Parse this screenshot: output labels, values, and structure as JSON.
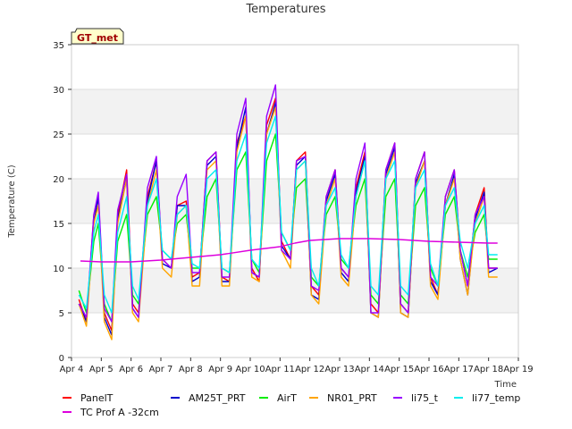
{
  "chart_data": {
    "type": "line",
    "title": "Temperatures",
    "xlabel": "Time",
    "ylabel": "Temperature (C)",
    "site_badge": "GT_met",
    "ylim": [
      0,
      35
    ],
    "yticks": [
      0,
      5,
      10,
      15,
      20,
      25,
      30,
      35
    ],
    "xlim": [
      0,
      15
    ],
    "xticks": [
      {
        "x": 0,
        "label": "Apr 4"
      },
      {
        "x": 1,
        "label": "Apr 5"
      },
      {
        "x": 2,
        "label": "Apr 6"
      },
      {
        "x": 3,
        "label": "Apr 7"
      },
      {
        "x": 4,
        "label": "Apr 8"
      },
      {
        "x": 5,
        "label": "Apr 9"
      },
      {
        "x": 6,
        "label": "Apr 10"
      },
      {
        "x": 7,
        "label": "Apr 11"
      },
      {
        "x": 8,
        "label": "Apr 12"
      },
      {
        "x": 9,
        "label": "Apr 13"
      },
      {
        "x": 10,
        "label": "Apr 14"
      },
      {
        "x": 11,
        "label": "Apr 15"
      },
      {
        "x": 12,
        "label": "Apr 16"
      },
      {
        "x": 13,
        "label": "Apr 17"
      },
      {
        "x": 14,
        "label": "Apr 18"
      },
      {
        "x": 15,
        "label": "Apr 19"
      }
    ],
    "grid": true,
    "bands": "alternating grey horizontal bands",
    "legend_position": "bottom",
    "series": [
      {
        "name": "PanelT",
        "color": "#ff0000",
        "x": [
          0.25,
          0.5,
          0.75,
          0.9,
          1.1,
          1.35,
          1.55,
          1.85,
          2.05,
          2.25,
          2.55,
          2.85,
          3.05,
          3.35,
          3.55,
          3.85,
          4.05,
          4.3,
          4.55,
          4.85,
          5.05,
          5.3,
          5.55,
          5.85,
          6.05,
          6.3,
          6.55,
          6.85,
          7.05,
          7.35,
          7.55,
          7.85,
          8.05,
          8.3,
          8.55,
          8.85,
          9.05,
          9.3,
          9.55,
          9.85,
          10.05,
          10.3,
          10.55,
          10.85,
          11.05,
          11.3,
          11.55,
          11.85,
          12.05,
          12.3,
          12.55,
          12.85,
          13.05,
          13.3,
          13.55,
          13.85,
          14.0,
          14.3
        ],
        "y": [
          6.5,
          4,
          16,
          18,
          5,
          3,
          16,
          21,
          6,
          5,
          18,
          22,
          11,
          10,
          17,
          17.5,
          9,
          9.5,
          22,
          23,
          9,
          8.5,
          24,
          27,
          10,
          8.5,
          26,
          29,
          13,
          11,
          22,
          23,
          8,
          7,
          18,
          21,
          10,
          9,
          19,
          23,
          6,
          5,
          21,
          24,
          6,
          5,
          20,
          23,
          9,
          7,
          18,
          21,
          12,
          8,
          16,
          19,
          10,
          10
        ]
      },
      {
        "name": "AM25T_PRT",
        "color": "#0000cc",
        "x": [
          0.25,
          0.5,
          0.75,
          0.9,
          1.1,
          1.35,
          1.55,
          1.85,
          2.05,
          2.25,
          2.55,
          2.85,
          3.05,
          3.35,
          3.55,
          3.85,
          4.05,
          4.3,
          4.55,
          4.85,
          5.05,
          5.3,
          5.55,
          5.85,
          6.05,
          6.3,
          6.55,
          6.85,
          7.05,
          7.35,
          7.55,
          7.85,
          8.05,
          8.3,
          8.55,
          8.85,
          9.05,
          9.3,
          9.55,
          9.85,
          10.05,
          10.3,
          10.55,
          10.85,
          11.05,
          11.3,
          11.55,
          11.85,
          12.05,
          12.3,
          12.55,
          12.85,
          13.05,
          13.3,
          13.55,
          13.85,
          14.0,
          14.3
        ],
        "y": [
          6,
          4,
          15,
          18,
          4.5,
          2.5,
          15.5,
          20,
          5.5,
          4.5,
          17.5,
          22,
          10.5,
          10,
          17,
          17,
          8.5,
          9,
          21.5,
          22.5,
          8.5,
          8.5,
          23.5,
          28,
          9.5,
          9,
          25,
          28.5,
          12.5,
          11,
          21.5,
          22.5,
          7,
          6.5,
          17.5,
          20.5,
          9.5,
          8.5,
          18.5,
          22.5,
          5,
          4.5,
          20.5,
          23.5,
          5,
          4.5,
          19.5,
          22,
          8.5,
          7,
          17,
          20.5,
          11,
          7,
          15.5,
          18.5,
          9.5,
          10
        ]
      },
      {
        "name": "AirT",
        "color": "#00ee00",
        "x": [
          0.25,
          0.5,
          0.75,
          0.9,
          1.1,
          1.35,
          1.55,
          1.85,
          2.05,
          2.25,
          2.55,
          2.85,
          3.05,
          3.35,
          3.55,
          3.85,
          4.05,
          4.3,
          4.55,
          4.85,
          5.05,
          5.3,
          5.55,
          5.85,
          6.05,
          6.3,
          6.55,
          6.85,
          7.05,
          7.35,
          7.55,
          7.85,
          8.05,
          8.3,
          8.55,
          8.85,
          9.05,
          9.3,
          9.55,
          9.85,
          10.05,
          10.3,
          10.55,
          10.85,
          11.05,
          11.3,
          11.55,
          11.85,
          12.05,
          12.3,
          12.55,
          12.85,
          13.05,
          13.3,
          13.55,
          13.85,
          14.0,
          14.3
        ],
        "y": [
          7.5,
          5,
          13,
          15,
          6,
          4,
          13,
          16,
          7,
          6,
          16,
          18,
          12,
          11,
          15,
          16,
          10,
          10,
          18,
          20,
          10,
          9.5,
          21,
          23,
          11,
          9.5,
          22,
          25,
          14,
          12,
          19,
          20,
          9,
          8,
          16,
          18,
          11,
          10,
          17,
          20,
          7,
          6,
          18,
          20,
          7,
          6,
          17,
          19,
          10,
          8,
          16,
          18,
          12,
          9,
          14,
          16,
          11,
          11
        ]
      },
      {
        "name": "NR01_PRT",
        "color": "#ffa500",
        "x": [
          0.25,
          0.5,
          0.75,
          0.9,
          1.1,
          1.35,
          1.55,
          1.85,
          2.05,
          2.25,
          2.55,
          2.85,
          3.05,
          3.35,
          3.55,
          3.85,
          4.05,
          4.3,
          4.55,
          4.85,
          5.05,
          5.3,
          5.55,
          5.85,
          6.05,
          6.3,
          6.55,
          6.85,
          7.05,
          7.35,
          7.55,
          7.85,
          8.05,
          8.3,
          8.55,
          8.85,
          9.05,
          9.3,
          9.55,
          9.85,
          10.05,
          10.3,
          10.55,
          10.85,
          11.05,
          11.3,
          11.55,
          11.85,
          12.05,
          12.3,
          12.55,
          12.85,
          13.05,
          13.3,
          13.55,
          13.85,
          14.0,
          14.3
        ],
        "y": [
          6,
          3.5,
          15,
          17,
          4,
          2,
          15,
          20,
          5,
          4,
          17,
          21,
          10,
          9,
          16,
          17,
          8,
          8,
          21,
          22,
          8,
          8,
          23,
          27,
          9,
          8.5,
          25,
          28,
          12,
          10,
          21,
          22,
          7,
          6,
          17,
          20,
          9,
          8,
          18,
          22,
          5,
          4.5,
          20,
          23,
          5,
          4.5,
          19,
          22,
          8,
          6.5,
          17,
          20,
          11,
          7,
          15,
          18,
          9,
          9
        ]
      },
      {
        "name": "li75_t",
        "color": "#9900ff",
        "x": [
          0.25,
          0.5,
          0.75,
          0.9,
          1.1,
          1.35,
          1.55,
          1.85,
          2.05,
          2.25,
          2.55,
          2.85,
          3.05,
          3.35,
          3.55,
          3.85,
          4.05,
          4.3,
          4.55,
          4.85,
          5.05,
          5.3,
          5.55,
          5.85,
          6.05,
          6.3,
          6.55,
          6.85,
          7.05,
          7.35,
          7.55,
          7.85,
          8.05,
          8.3,
          8.55,
          8.85,
          9.05,
          9.3,
          9.55,
          9.85,
          10.05,
          10.3,
          10.55,
          10.85,
          11.05,
          11.3,
          11.55,
          11.85,
          12.05,
          12.3,
          12.55,
          12.85,
          13.05,
          13.3,
          13.55,
          13.85,
          14.0,
          14.3
        ],
        "y": [
          6,
          4.5,
          16,
          18.5,
          5.5,
          4,
          16.5,
          20.5,
          5.5,
          4.5,
          19,
          22.5,
          11,
          10,
          18,
          20.5,
          9.5,
          9.5,
          22,
          23,
          9,
          9,
          25,
          29,
          9.5,
          9,
          27,
          30.5,
          12,
          11,
          22,
          22.5,
          8,
          7.5,
          18,
          21,
          10,
          9,
          20,
          24,
          5,
          5,
          21,
          24,
          6,
          5,
          20,
          23,
          9,
          8,
          18,
          21,
          12,
          8,
          16,
          18,
          10,
          10
        ]
      },
      {
        "name": "li77_temp",
        "color": "#00eeee",
        "x": [
          0.25,
          0.5,
          0.75,
          0.9,
          1.1,
          1.35,
          1.55,
          1.85,
          2.05,
          2.25,
          2.55,
          2.85,
          3.05,
          3.35,
          3.55,
          3.85,
          4.05,
          4.3,
          4.55,
          4.85,
          5.05,
          5.3,
          5.55,
          5.85,
          6.05,
          6.3,
          6.55,
          6.85,
          7.05,
          7.35,
          7.55,
          7.85,
          8.05,
          8.3,
          8.55,
          8.85,
          9.05,
          9.3,
          9.55,
          9.85,
          10.05,
          10.3,
          10.55,
          10.85,
          11.05,
          11.3,
          11.55,
          11.85,
          12.05,
          12.3,
          12.55,
          12.85,
          13.05,
          13.3,
          13.55,
          13.85,
          14.0,
          14.3
        ],
        "y": [
          7,
          5.5,
          14,
          16,
          7,
          5,
          14,
          18,
          8,
          6.5,
          17,
          20,
          12,
          11,
          16,
          17,
          10.5,
          10,
          20,
          21,
          10,
          9.5,
          22,
          25,
          11,
          10,
          24,
          27,
          14,
          12,
          21,
          22,
          10,
          8,
          17,
          19,
          11.5,
          10,
          18,
          22,
          8,
          7,
          20,
          22,
          8,
          7,
          19,
          21,
          10.5,
          8,
          17,
          19,
          13,
          10,
          15,
          17,
          11.5,
          11.5
        ]
      },
      {
        "name": "TC Prof A -32cm",
        "color": "#dd00dd",
        "x": [
          0.3,
          1,
          2,
          3,
          4,
          5,
          6,
          7,
          7.5,
          8,
          9,
          10,
          11,
          12,
          13,
          14,
          14.3
        ],
        "y": [
          10.8,
          10.7,
          10.7,
          10.9,
          11.2,
          11.5,
          12.0,
          12.4,
          12.8,
          13.1,
          13.3,
          13.3,
          13.2,
          13.0,
          12.9,
          12.8,
          12.8
        ]
      }
    ]
  }
}
